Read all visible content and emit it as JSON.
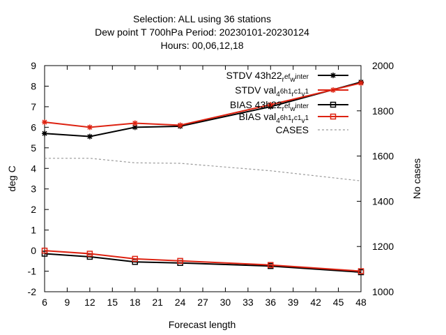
{
  "chart_data": {
    "type": "line",
    "title_lines": [
      "Selection: ALL using    36 stations",
      "Dew point T 700hPa   Period: 20230101-20230124",
      "Hours:  00,06,12,18"
    ],
    "xlabel": "Forecast length",
    "ylabel": "deg C",
    "y2label": "No cases",
    "xlim": [
      6,
      48
    ],
    "ylim": [
      -2,
      9
    ],
    "y2lim": [
      1000,
      2000
    ],
    "x_ticks": [
      6,
      9,
      12,
      15,
      18,
      21,
      24,
      27,
      30,
      33,
      36,
      39,
      42,
      45,
      48
    ],
    "y_ticks": [
      -2,
      -1,
      0,
      1,
      2,
      3,
      4,
      5,
      6,
      7,
      8,
      9
    ],
    "y2_ticks": [
      1000,
      1200,
      1400,
      1600,
      1800,
      2000
    ],
    "legend_position": "top-right",
    "grid": false,
    "series": [
      {
        "name": "STDV 43h22_ref_winter",
        "legend_parts": [
          "STDV 43h22",
          "r",
          "ef",
          "w",
          "inter"
        ],
        "color": "#000000",
        "marker": "star",
        "axis": "y",
        "x": [
          6,
          12,
          18,
          24,
          36,
          48
        ],
        "values": [
          5.7,
          5.55,
          6.0,
          6.05,
          7.0,
          8.2
        ]
      },
      {
        "name": "STDV val_46h1_rc1_v1",
        "legend_parts": [
          "STDV val",
          "4",
          "6h1",
          "r",
          "c1",
          "v",
          "1"
        ],
        "color": "#dd2211",
        "marker": "star",
        "axis": "y",
        "x": [
          6,
          12,
          18,
          24,
          36,
          48
        ],
        "values": [
          6.25,
          6.0,
          6.2,
          6.1,
          7.1,
          8.15
        ]
      },
      {
        "name": "BIAS 43h22_ref_winter",
        "legend_parts": [
          "BIAS 43h22",
          "r",
          "ef",
          "w",
          "inter"
        ],
        "color": "#000000",
        "marker": "square",
        "axis": "y",
        "x": [
          6,
          12,
          18,
          24,
          36,
          48
        ],
        "values": [
          -0.15,
          -0.3,
          -0.55,
          -0.6,
          -0.75,
          -1.05
        ]
      },
      {
        "name": "BIAS val_46h1_rc1_v1",
        "legend_parts": [
          "BIAS val",
          "4",
          "6h1",
          "r",
          "c1",
          "v",
          "1"
        ],
        "color": "#dd2211",
        "marker": "square",
        "axis": "y",
        "x": [
          6,
          12,
          18,
          24,
          36,
          48
        ],
        "values": [
          0.0,
          -0.15,
          -0.4,
          -0.5,
          -0.7,
          -1.0
        ]
      },
      {
        "name": "CASES",
        "legend_parts": [
          "CASES"
        ],
        "color": "#999999",
        "marker": "none",
        "dash": true,
        "axis": "y2",
        "x": [
          6,
          12,
          18,
          24,
          36,
          48
        ],
        "values": [
          1590,
          1590,
          1570,
          1568,
          1535,
          1490
        ]
      }
    ]
  }
}
